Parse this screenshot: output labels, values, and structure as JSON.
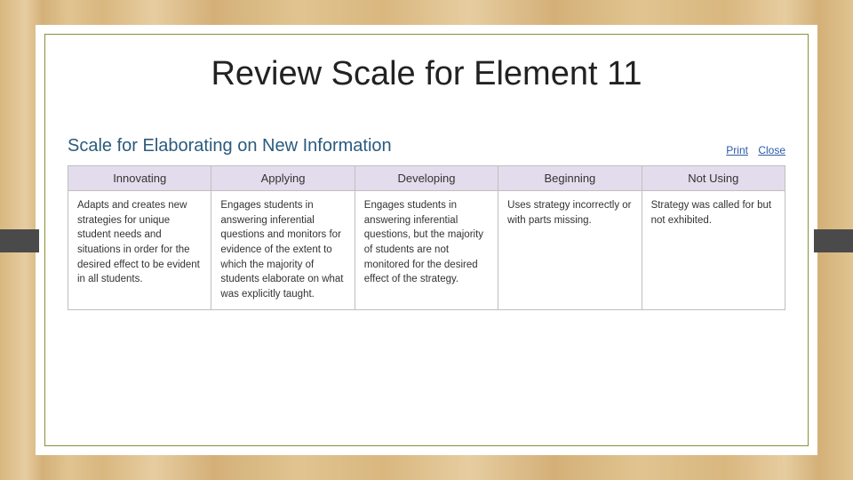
{
  "colors": {
    "slide_bg": "#ffffff",
    "frame_border": "#8a8f3a",
    "header_bg": "#e3dcec",
    "cell_border": "#bfbfbf",
    "subtitle_color": "#2b5b7d",
    "link_color": "#2b5ba8",
    "text_color": "#333333",
    "corner_tab": "#4a4a4a"
  },
  "typography": {
    "title_fontsize": 38,
    "subtitle_fontsize": 20,
    "header_fontsize": 13,
    "cell_fontsize": 11.5
  },
  "title": "Review Scale for Element 11",
  "subtitle": "Scale for Elaborating on New Information",
  "links": {
    "print": "Print",
    "close": "Close"
  },
  "table": {
    "columns": [
      "Innovating",
      "Applying",
      "Developing",
      "Beginning",
      "Not Using"
    ],
    "rows": [
      [
        "Adapts and creates new strategies for unique student needs and situations in order for the desired effect to be evident in all students.",
        "Engages students in answering inferential questions and monitors for evidence of the extent to which the majority of students elaborate on what was explicitly taught.",
        "Engages students in answering inferential questions, but the majority of students are not monitored for the desired effect of the strategy.",
        "Uses strategy incorrectly or with parts missing.",
        "Strategy was called for but not exhibited."
      ]
    ]
  }
}
